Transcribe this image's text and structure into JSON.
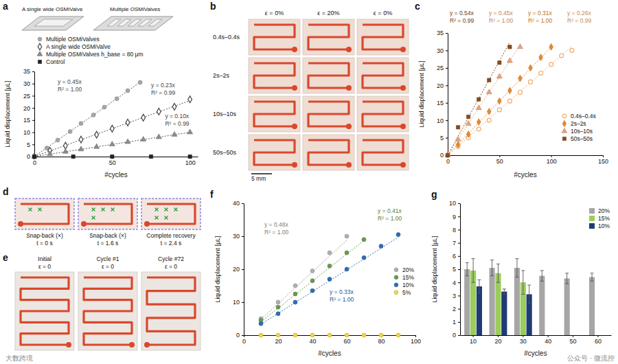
{
  "chart_data": [
    {
      "panel_label": "a",
      "type": "scatter",
      "x_label": "#cycles",
      "y_label": "Liquid displacement [μL]",
      "xlim": [
        0,
        105
      ],
      "xticks": [
        0,
        50,
        100
      ],
      "ylim": [
        0,
        35
      ],
      "yticks": [
        0,
        5,
        10,
        15,
        20,
        25,
        30,
        35
      ],
      "legend": "top",
      "illustration_labels": [
        "A single wide OSMiValve",
        "Multiple OSMiValves"
      ],
      "series": [
        {
          "name": "Multiple OSMiValves",
          "color": "#a6a6a6",
          "marker": "circle",
          "x": [
            0,
            8,
            15,
            23,
            30,
            38,
            45,
            53,
            60,
            68
          ],
          "values": [
            0,
            3.5,
            6.8,
            10.3,
            13.6,
            17.1,
            20.3,
            23.8,
            27.1,
            30.5
          ]
        },
        {
          "name": "A single wide OSMiValve",
          "color": "#404040",
          "marker": "diamond_open",
          "x": [
            0,
            10,
            20,
            30,
            40,
            50,
            60,
            70,
            80,
            90,
            100
          ],
          "values": [
            0,
            2.5,
            4.5,
            7,
            9,
            11.5,
            14,
            16,
            18.5,
            20.5,
            23.5
          ]
        },
        {
          "name": "Multiple OSMiValves h_base = 80 μm",
          "color": "#8c8c8c",
          "marker": "triangle",
          "x": [
            0,
            10,
            20,
            30,
            40,
            50,
            60,
            70,
            80,
            90,
            100
          ],
          "values": [
            0,
            1,
            2,
            3,
            4,
            5,
            6,
            7,
            8,
            9,
            10
          ]
        },
        {
          "name": "Control",
          "color": "#222222",
          "marker": "square",
          "x": [
            0,
            25,
            50,
            75,
            100
          ],
          "values": [
            0,
            0,
            0,
            0,
            0
          ]
        }
      ],
      "fits": [
        {
          "equation": "y = 0.45x",
          "r_squared": "R² = 1.00",
          "color": "#555555",
          "x": [
            0,
            68
          ],
          "values": [
            0,
            30.6
          ]
        },
        {
          "equation": "y = 0.23x",
          "r_squared": "R² = 0.99",
          "color": "#555555",
          "x": [
            0,
            100
          ],
          "values": [
            0,
            23
          ]
        },
        {
          "equation": "y = 0.10x",
          "r_squared": "R² = 0.99",
          "color": "#555555",
          "x": [
            0,
            100
          ],
          "values": [
            0,
            10
          ]
        }
      ]
    },
    {
      "panel_label": "c",
      "type": "scatter",
      "x_label": "#cycles",
      "y_label": "Liquid displacement [μL]",
      "xlim": [
        0,
        150
      ],
      "xticks": [
        0,
        50,
        100,
        150
      ],
      "ylim": [
        0,
        35
      ],
      "yticks": [
        0,
        5,
        10,
        15,
        20,
        25,
        30,
        35
      ],
      "legend": "lower right",
      "series": [
        {
          "name": "0.4s–0.4s",
          "color": "#f0ad6e",
          "marker": "circle_open",
          "x": [
            0,
            10,
            20,
            30,
            40,
            50,
            60,
            70,
            80,
            90,
            100,
            110,
            120
          ],
          "values": [
            0,
            2.5,
            5,
            7.5,
            10,
            13,
            15.5,
            18,
            21,
            23.5,
            26,
            28.5,
            30
          ]
        },
        {
          "name": "2s–2s",
          "color": "#e8892b",
          "marker": "diamond",
          "x": [
            0,
            10,
            20,
            30,
            40,
            50,
            60,
            70,
            80,
            90,
            100
          ],
          "values": [
            0,
            3,
            6,
            9.5,
            12.5,
            15.5,
            18.5,
            22,
            25,
            28,
            31
          ]
        },
        {
          "name": "10s–10s",
          "color": "#e9a27d",
          "marker": "triangle",
          "x": [
            0,
            10,
            20,
            30,
            40,
            50,
            60,
            70
          ],
          "values": [
            0,
            4.5,
            9,
            13.5,
            18,
            22.5,
            27,
            31
          ]
        },
        {
          "name": "50s–50s",
          "color": "#8b4a1c",
          "marker": "square",
          "x": [
            0,
            10,
            20,
            30,
            40,
            50,
            60
          ],
          "values": [
            0,
            8,
            11,
            16,
            21.5,
            26.5,
            31
          ]
        }
      ],
      "fits": [
        {
          "equation": "y = 0.54x",
          "r_squared": "R² = 0.99",
          "color": "#8b4a1c",
          "x": [
            0,
            60
          ],
          "values": [
            0,
            32.4
          ]
        },
        {
          "equation": "y = 0.45x",
          "r_squared": "R² = 1.00",
          "color": "#e9a27d",
          "x": [
            0,
            70
          ],
          "values": [
            0,
            31.5
          ]
        },
        {
          "equation": "y = 0.31x",
          "r_squared": "R² = 1.00",
          "color": "#e8892b",
          "x": [
            0,
            100
          ],
          "values": [
            0,
            31
          ]
        },
        {
          "equation": "y = 0.26x",
          "r_squared": "R² = 0.99",
          "color": "#f0ad6e",
          "x": [
            0,
            120
          ],
          "values": [
            0,
            31.2
          ]
        }
      ]
    },
    {
      "panel_label": "f",
      "type": "scatter",
      "x_label": "#cycles",
      "y_label": "Liquid displacement [μL]",
      "xlim": [
        0,
        100
      ],
      "xticks": [
        0,
        20,
        40,
        60,
        80,
        100
      ],
      "ylim": [
        0,
        40
      ],
      "yticks": [
        0,
        10,
        20,
        30,
        40
      ],
      "legend": "right",
      "series": [
        {
          "name": "20%",
          "color": "#b0b0b0",
          "marker": "circle",
          "x": [
            10,
            20,
            30,
            40,
            50,
            60
          ],
          "values": [
            5,
            10,
            15,
            19.5,
            25,
            30
          ]
        },
        {
          "name": "15%",
          "color": "#6b9a4c",
          "marker": "circle",
          "x": [
            10,
            20,
            30,
            40,
            50,
            60,
            70
          ],
          "values": [
            4.5,
            8.5,
            12.5,
            16.5,
            21,
            25,
            29
          ]
        },
        {
          "name": "10%",
          "color": "#2f6db3",
          "marker": "circle",
          "x": [
            10,
            20,
            30,
            40,
            50,
            60,
            70,
            80,
            90
          ],
          "values": [
            3.5,
            6.5,
            10,
            13.5,
            17,
            20,
            23.5,
            27,
            30.5
          ]
        },
        {
          "name": "5%",
          "color": "#f2d53c",
          "marker": "circle",
          "x": [
            10,
            20,
            30,
            40,
            50,
            60,
            70,
            80,
            90
          ],
          "values": [
            0,
            0,
            0,
            0,
            0,
            0,
            0,
            0,
            0
          ]
        }
      ],
      "fits": [
        {
          "equation": "y = 0.48x",
          "r_squared": "R² = 1.00",
          "color": "#9a9a9a",
          "x": [
            10,
            60
          ],
          "values": [
            4.8,
            28.8
          ]
        },
        {
          "equation": "y = 0.41x",
          "r_squared": "R² = 1.00",
          "color": "#6b9a4c",
          "x": [
            10,
            70
          ],
          "values": [
            4.1,
            28.7
          ]
        },
        {
          "equation": "y = 0.33x",
          "r_squared": "R² = 1.00",
          "color": "#2f6db3",
          "x": [
            10,
            90
          ],
          "values": [
            3.3,
            29.7
          ]
        }
      ]
    },
    {
      "panel_label": "g",
      "type": "bar",
      "x_label": "#cycles",
      "y_label": "Liquid displacement [μL]",
      "categories": [
        10,
        20,
        30,
        40,
        50,
        60
      ],
      "ylim": [
        0,
        10
      ],
      "yticks": [
        0,
        1,
        2,
        3,
        4,
        5,
        6,
        7,
        8,
        9,
        10
      ],
      "legend": "upper right",
      "series": [
        {
          "name": "20%",
          "color": "#a6a6a6",
          "values": [
            5.0,
            5.1,
            5.1,
            4.5,
            4.3,
            4.4
          ],
          "errors": [
            0.5,
            0.6,
            0.7,
            0.4,
            0.4,
            0.3
          ]
        },
        {
          "name": "15%",
          "color": "#9acd5a",
          "values": [
            4.9,
            4.7,
            4.0,
            null,
            null,
            null
          ],
          "errors": [
            0.9,
            0.7,
            0.9,
            null,
            null,
            null
          ]
        },
        {
          "name": "10%",
          "color": "#1f3b73",
          "values": [
            3.7,
            3.3,
            3.1,
            null,
            null,
            null
          ],
          "errors": [
            0.5,
            0.2,
            0.7,
            null,
            null,
            null
          ]
        }
      ]
    }
  ],
  "photo_panels": [
    {
      "panel_label": "b",
      "column_labels": [
        "ε = 0%",
        "ε = 20%",
        "ε = 0%"
      ],
      "row_labels": [
        "0.4s–0.4s",
        "2s–2s",
        "10s–10s",
        "50s–50s"
      ],
      "scale_bar": "5 mm"
    },
    {
      "panel_label": "d",
      "frames": [
        {
          "caption": "Snap-back (×)",
          "time": "t = 0 s"
        },
        {
          "caption": "Snap-back (×)",
          "time": "t = 1.6 s"
        },
        {
          "caption": "Complete recovery",
          "time": "t = 2.4 s"
        }
      ]
    },
    {
      "panel_label": "e",
      "frames": [
        {
          "caption": "Initial",
          "strain": "ε = 0"
        },
        {
          "caption": "Cycle #1",
          "strain": "ε = 0"
        },
        {
          "caption": "Cycle #72",
          "strain": "ε = 0"
        }
      ]
    }
  ],
  "watermarks": [
    "大数跨境",
    "公众号 · 微流控"
  ]
}
